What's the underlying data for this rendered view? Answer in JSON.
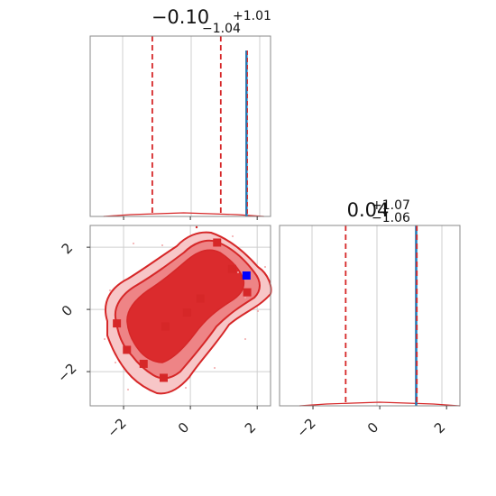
{
  "chart_data": [
    {
      "type": "histogram",
      "panel": "marginal-x1",
      "title": {
        "median": "−0.10",
        "plus": "+1.01",
        "minus": "−1.04"
      },
      "xlim": [
        -3,
        2.4
      ],
      "credible_interval": {
        "lower": -1.14,
        "median": -0.1,
        "upper": 0.91
      },
      "true_value": 1.68,
      "density": {
        "x": [
          -2.6,
          -1.8,
          -1.0,
          -0.2,
          0.6,
          1.4,
          2.2
        ],
        "y": [
          0.0,
          0.01,
          0.015,
          0.02,
          0.015,
          0.01,
          0.0
        ]
      }
    },
    {
      "type": "histogram",
      "panel": "marginal-x2",
      "title": {
        "median": "0.04",
        "plus": "+1.07",
        "minus": "−1.06"
      },
      "xlim": [
        -3,
        2.4
      ],
      "credible_interval": {
        "lower": -1.02,
        "median": 0.04,
        "upper": 1.11
      },
      "true_value": 1.09,
      "ticks": [
        "−2",
        "0",
        "2"
      ],
      "density": {
        "x": [
          -2.4,
          -1.6,
          -0.8,
          0.0,
          0.8,
          1.6,
          2.4
        ],
        "y": [
          0.0,
          0.01,
          0.015,
          0.02,
          0.015,
          0.01,
          0.0
        ]
      }
    },
    {
      "type": "contour",
      "panel": "joint-x1-x2",
      "xlim": [
        -3,
        2.4
      ],
      "ylim": [
        -3.1,
        2.7
      ],
      "xticks": [
        "−2",
        "0",
        "2"
      ],
      "yticks": [
        "−2",
        "0",
        "2"
      ],
      "true_value": {
        "x": 1.68,
        "y": 1.09
      },
      "markers": [
        {
          "x": -2.2,
          "y": -0.45
        },
        {
          "x": -1.9,
          "y": -1.3
        },
        {
          "x": -1.4,
          "y": -1.75
        },
        {
          "x": -0.8,
          "y": -2.2
        },
        {
          "x": -0.75,
          "y": -0.55
        },
        {
          "x": 0.3,
          "y": 0.35
        },
        {
          "x": -0.1,
          "y": -0.1
        },
        {
          "x": 1.25,
          "y": 1.3
        },
        {
          "x": 1.7,
          "y": 0.55
        },
        {
          "x": 0.8,
          "y": 2.15
        }
      ]
    }
  ],
  "colors": {
    "posterior": "#d62728",
    "fill_outer": "#f7c6c7",
    "fill_mid": "#ee8486",
    "fill_inner": "#db2b2d",
    "truth_line": "#1f77b4",
    "truth_point": "#0000ff",
    "frame": "#8a8a8a",
    "grid": "#cfcfcf"
  }
}
